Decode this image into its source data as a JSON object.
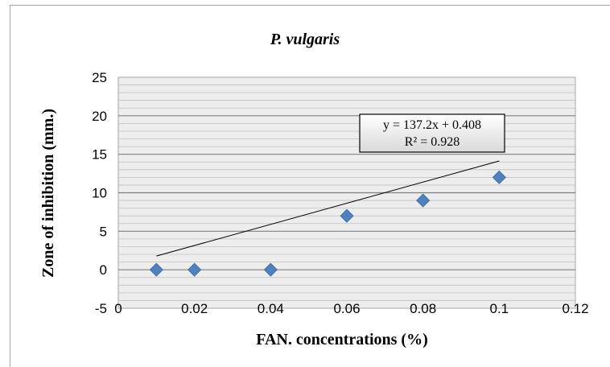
{
  "chart_data": {
    "type": "scatter",
    "title": "P. vulgaris",
    "xlabel": "FAN. concentrations (%)",
    "ylabel": "Zone of inhibition (mm.)",
    "xlim": [
      0,
      0.12
    ],
    "ylim": [
      -5,
      25
    ],
    "x_ticks": [
      "0",
      "0.02",
      "0.04",
      "0.06",
      "0.08",
      "0.1",
      "0.12"
    ],
    "y_ticks": [
      "-5",
      "0",
      "5",
      "10",
      "15",
      "20",
      "25"
    ],
    "series": [
      {
        "x": [
          0.01,
          0.02,
          0.04,
          0.06,
          0.08,
          0.1
        ],
        "y": [
          0,
          0,
          0,
          7,
          9,
          12
        ],
        "color": "#4f81bd",
        "marker": "diamond"
      }
    ],
    "trendline": {
      "type": "linear",
      "slope": 137.2,
      "intercept": 0.408,
      "x_range": [
        0.01,
        0.1
      ],
      "equation": "y = 137.2x + 0.408",
      "r_squared": "R² = 0.928"
    },
    "grid": true,
    "legend": "none"
  }
}
